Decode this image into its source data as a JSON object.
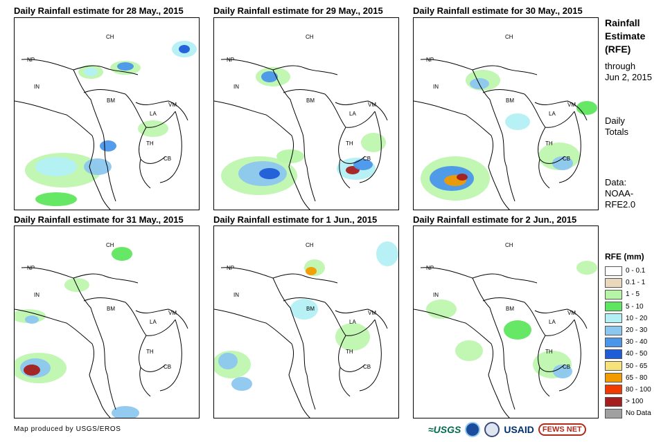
{
  "panels": [
    {
      "title": "Daily Rainfall estimate for 28 May., 2015"
    },
    {
      "title": "Daily Rainfall estimate for 29 May., 2015"
    },
    {
      "title": "Daily Rainfall estimate for 30 May., 2015"
    },
    {
      "title": "Daily Rainfall estimate for 31 May., 2015"
    },
    {
      "title": "Daily Rainfall estimate for 1 Jun., 2015"
    },
    {
      "title": "Daily Rainfall estimate for 2 Jun., 2015"
    }
  ],
  "country_labels": [
    "CH",
    "NP",
    "IN",
    "BM",
    "LA",
    "VM",
    "TH",
    "CB"
  ],
  "sidebar": {
    "title_lines": [
      "Rainfall",
      "Estimate",
      "(RFE)"
    ],
    "through_lines": [
      "through",
      "Jun 2, 2015"
    ],
    "totals_lines": [
      "Daily",
      "Totals"
    ],
    "data_lines": [
      "Data:",
      "NOAA-",
      "RFE2.0"
    ]
  },
  "legend": {
    "title": "RFE (mm)",
    "items": [
      {
        "label": "0 - 0.1",
        "color": "#ffffff"
      },
      {
        "label": "0.1 - 1",
        "color": "#ead8bc"
      },
      {
        "label": "1 - 5",
        "color": "#b6f5a6"
      },
      {
        "label": "5 - 10",
        "color": "#5ee65e"
      },
      {
        "label": "10 - 20",
        "color": "#b3f0f5"
      },
      {
        "label": "20 - 30",
        "color": "#8cc7ef"
      },
      {
        "label": "30 - 40",
        "color": "#4a96ea"
      },
      {
        "label": "40 - 50",
        "color": "#1f5cd8"
      },
      {
        "label": "50 - 65",
        "color": "#f6e27a"
      },
      {
        "label": "65 - 80",
        "color": "#f29b00"
      },
      {
        "label": "80 - 100",
        "color": "#f03a00"
      },
      {
        "label": "> 100",
        "color": "#a51d1d"
      },
      {
        "label": "No Data",
        "color": "#a0a0a0"
      }
    ]
  },
  "credit": "Map produced by USGS/EROS",
  "logos": {
    "usgs": "≈USGS",
    "usaid": "USAID",
    "fews": "FEWS NET"
  }
}
